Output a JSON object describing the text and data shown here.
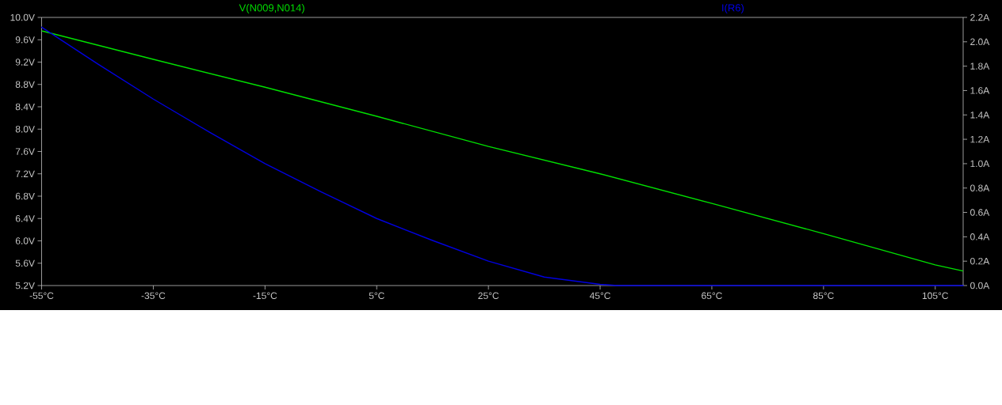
{
  "chart_data": {
    "type": "line",
    "xlim": [
      -55,
      110
    ],
    "xticks": [
      {
        "value": -55,
        "label": "-55°C"
      },
      {
        "value": -35,
        "label": "-35°C"
      },
      {
        "value": -15,
        "label": "-15°C"
      },
      {
        "value": 5,
        "label": "5°C"
      },
      {
        "value": 25,
        "label": "25°C"
      },
      {
        "value": 45,
        "label": "45°C"
      },
      {
        "value": 65,
        "label": "65°C"
      },
      {
        "value": 85,
        "label": "85°C"
      },
      {
        "value": 105,
        "label": "105°C"
      }
    ],
    "ylim": [
      5.2,
      10.0
    ],
    "yticks": [
      {
        "value": 5.2,
        "label": "5.2V"
      },
      {
        "value": 5.6,
        "label": "5.6V"
      },
      {
        "value": 6.0,
        "label": "6.0V"
      },
      {
        "value": 6.4,
        "label": "6.4V"
      },
      {
        "value": 6.8,
        "label": "6.8V"
      },
      {
        "value": 7.2,
        "label": "7.2V"
      },
      {
        "value": 7.6,
        "label": "7.6V"
      },
      {
        "value": 8.0,
        "label": "8.0V"
      },
      {
        "value": 8.4,
        "label": "8.4V"
      },
      {
        "value": 8.8,
        "label": "8.8V"
      },
      {
        "value": 9.2,
        "label": "9.2V"
      },
      {
        "value": 9.6,
        "label": "9.6V"
      },
      {
        "value": 10.0,
        "label": "10.0V"
      }
    ],
    "y2lim": [
      0,
      2.2
    ],
    "y2ticks": [
      {
        "value": 0,
        "label": "0.0A"
      },
      {
        "value": 0.2,
        "label": "0.2A"
      },
      {
        "value": 0.4,
        "label": "0.4A"
      },
      {
        "value": 0.6,
        "label": "0.6A"
      },
      {
        "value": 0.8,
        "label": "0.8A"
      },
      {
        "value": 1.0,
        "label": "1.0A"
      },
      {
        "value": 1.2,
        "label": "1.2A"
      },
      {
        "value": 1.4,
        "label": "1.4A"
      },
      {
        "value": 1.6,
        "label": "1.6A"
      },
      {
        "value": 1.8,
        "label": "1.8A"
      },
      {
        "value": 2.0,
        "label": "2.0A"
      },
      {
        "value": 2.2,
        "label": "2.2A"
      }
    ],
    "grid": false,
    "legend": "top",
    "series": [
      {
        "name": "V(N009,N014)",
        "color": "#00e000",
        "x": [
          -55,
          -35,
          -15,
          5,
          25,
          45,
          65,
          85,
          105,
          110
        ],
        "values": [
          9.76,
          9.25,
          8.75,
          8.23,
          7.69,
          7.2,
          6.67,
          6.13,
          5.57,
          5.46
        ]
      },
      {
        "name": "I(R6)",
        "color": "#0000e0",
        "axis": "y2",
        "x": [
          -55,
          -45,
          -35,
          -25,
          -15,
          -5,
          5,
          15,
          25,
          35,
          45,
          48,
          110
        ],
        "values": [
          2.12,
          1.82,
          1.53,
          1.26,
          1.0,
          0.77,
          0.55,
          0.37,
          0.2,
          0.07,
          0.01,
          0,
          0
        ]
      }
    ]
  }
}
